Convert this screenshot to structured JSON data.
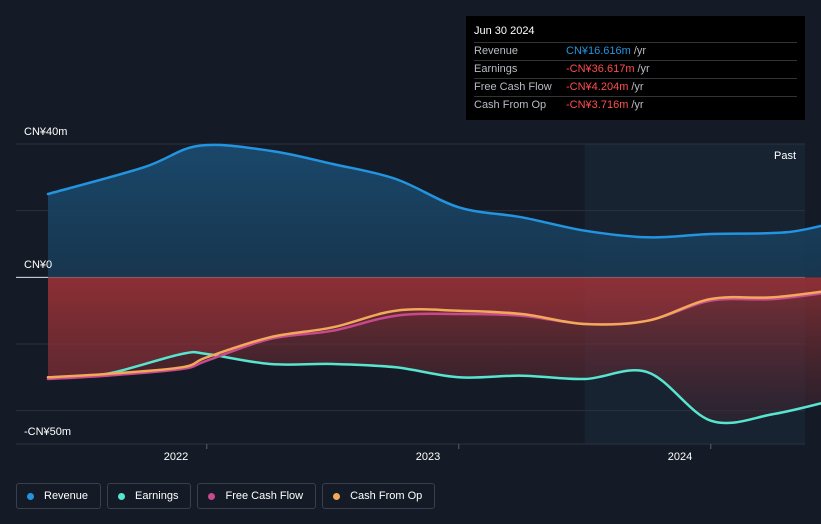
{
  "tooltip": {
    "date": "Jun 30 2024",
    "rows": [
      {
        "label": "Revenue",
        "value": "CN¥16.616m",
        "unit": "/yr",
        "color": "#2394df"
      },
      {
        "label": "Earnings",
        "value": "-CN¥36.617m",
        "unit": "/yr",
        "color": "#ff4d4d"
      },
      {
        "label": "Free Cash Flow",
        "value": "-CN¥4.204m",
        "unit": "/yr",
        "color": "#ff4d4d"
      },
      {
        "label": "Cash From Op",
        "value": "-CN¥3.716m",
        "unit": "/yr",
        "color": "#ff4d4d"
      }
    ]
  },
  "past_label": "Past",
  "legend": [
    {
      "label": "Revenue",
      "color": "#2394df"
    },
    {
      "label": "Earnings",
      "color": "#58e5cf"
    },
    {
      "label": "Free Cash Flow",
      "color": "#c74a8d"
    },
    {
      "label": "Cash From Op",
      "color": "#f2a95a"
    }
  ],
  "chart_data": {
    "type": "area",
    "y_unit": "CN¥ m",
    "ylim": [
      -50,
      40
    ],
    "y_tick_labels": [
      "CN¥40m",
      "CN¥0",
      "-CN¥50m"
    ],
    "y_tick_values": [
      40,
      0,
      -50
    ],
    "x_range": [
      2021.37,
      2024.5
    ],
    "x_tick_labels": [
      "2022",
      "2023",
      "2024"
    ],
    "x_tick_values": [
      2022.0,
      2023.0,
      2024.0
    ],
    "forecast_start": 2023.5,
    "series": [
      {
        "name": "Revenue",
        "color": "#2394df",
        "x": [
          2021.37,
          2021.75,
          2021.97,
          2022.25,
          2022.5,
          2022.75,
          2023.0,
          2023.25,
          2023.5,
          2023.75,
          2024.0,
          2024.3,
          2024.5
        ],
        "y": [
          25.0,
          33.0,
          39.5,
          38.0,
          34.0,
          29.5,
          21.0,
          18.0,
          14.0,
          12.0,
          13.0,
          13.5,
          16.6
        ]
      },
      {
        "name": "Earnings",
        "color": "#58e5cf",
        "x": [
          2021.37,
          2021.6,
          2021.9,
          2022.0,
          2022.25,
          2022.5,
          2022.75,
          2023.0,
          2023.25,
          2023.5,
          2023.75,
          2024.0,
          2024.25,
          2024.5
        ],
        "y": [
          -30.0,
          -29.0,
          -23.0,
          -23.0,
          -26.0,
          -26.0,
          -27.0,
          -30.0,
          -29.5,
          -30.5,
          -28.5,
          -43.0,
          -41.0,
          -36.6
        ]
      },
      {
        "name": "Free Cash Flow",
        "color": "#c74a8d",
        "x": [
          2021.37,
          2021.6,
          2021.9,
          2022.0,
          2022.25,
          2022.5,
          2022.75,
          2023.0,
          2023.25,
          2023.5,
          2023.75,
          2024.0,
          2024.25,
          2024.5
        ],
        "y": [
          -30.5,
          -29.5,
          -27.5,
          -25.0,
          -18.5,
          -16.0,
          -11.5,
          -11.0,
          -11.5,
          -14.0,
          -13.0,
          -7.0,
          -6.5,
          -4.2
        ]
      },
      {
        "name": "Cash From Op",
        "color": "#f2a95a",
        "x": [
          2021.37,
          2021.6,
          2021.9,
          2022.0,
          2022.25,
          2022.5,
          2022.75,
          2023.0,
          2023.25,
          2023.5,
          2023.75,
          2024.0,
          2024.25,
          2024.5
        ],
        "y": [
          -30.0,
          -29.0,
          -27.0,
          -24.0,
          -18.0,
          -15.0,
          -10.0,
          -10.0,
          -11.0,
          -14.0,
          -13.0,
          -6.5,
          -6.0,
          -3.7
        ]
      }
    ],
    "grid": true
  }
}
